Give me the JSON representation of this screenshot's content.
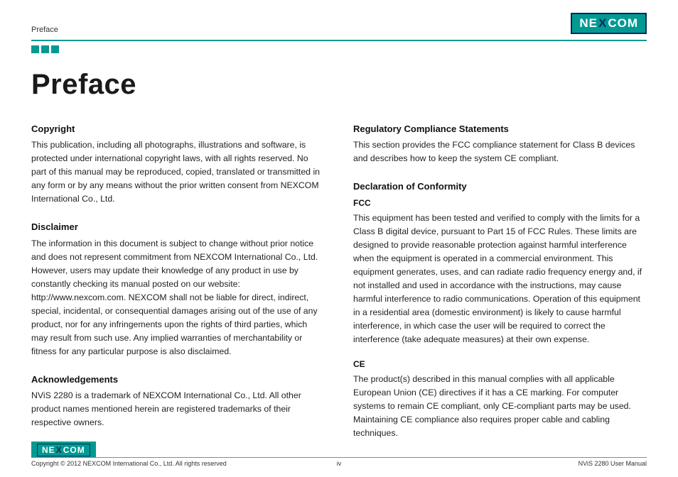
{
  "header": {
    "section_label": "Preface",
    "logo_text_a": "NE",
    "logo_text_x": "X",
    "logo_text_b": "COM"
  },
  "title": "Preface",
  "left_column": {
    "copyright": {
      "heading": "Copyright",
      "body": "This publication, including all photographs, illustrations and software, is protected under international copyright laws, with all rights reserved. No part of this manual may be reproduced, copied, translated or transmitted in any form or by any means without the prior written consent from NEXCOM International Co., Ltd."
    },
    "disclaimer": {
      "heading": "Disclaimer",
      "body": "The information in this document is subject to change without prior notice and does not represent commitment from NEXCOM International Co., Ltd. However, users may update their knowledge of any product in use by constantly checking its manual posted on our website: http://www.nexcom.com. NEXCOM shall not be liable for direct, indirect, special, incidental, or consequential damages arising out of the use of any product, nor for any infringements upon the rights of third parties, which may result from such use. Any implied warranties of merchantability or fitness for any particular purpose is also disclaimed."
    },
    "ack": {
      "heading": "Acknowledgements",
      "body": "NViS 2280 is a trademark of NEXCOM International Co., Ltd. All other product names mentioned herein are registered trademarks of their respective owners."
    }
  },
  "right_column": {
    "reg": {
      "heading": "Regulatory Compliance Statements",
      "body": "This section provides the FCC compliance statement for Class B devices and describes how to keep the system CE compliant."
    },
    "doc": {
      "heading": "Declaration of Conformity",
      "fcc_label": "FCC",
      "fcc_body": "This equipment has been tested and verified to comply with the limits for a Class B digital device, pursuant to Part 15 of FCC Rules. These limits are designed to provide reasonable protection against harmful interference when the equipment is operated in a commercial environment. This equipment generates, uses, and can radiate radio frequency energy and, if not installed and used in accordance with the instructions, may cause harmful interference to radio communications. Operation of this equipment in a residential area (domestic environment) is likely to cause harmful interference, in which case the user will be required to correct the interference (take adequate measures) at their own expense.",
      "ce_label": "CE",
      "ce_body": "The product(s) described in this manual complies with all applicable European Union (CE) directives if it has a CE marking. For computer systems to remain CE compliant, only CE-compliant parts may be used. Maintaining CE compliance also requires proper cable and cabling techniques."
    }
  },
  "footer": {
    "copyright": "Copyright © 2012 NEXCOM International Co., Ltd. All rights reserved",
    "page_num": "iv",
    "manual": "NViS 2280 User Manual"
  },
  "colors": {
    "brand_teal": "#009a93",
    "brand_navy": "#0a2a5c",
    "text": "#222222",
    "background": "#ffffff"
  }
}
